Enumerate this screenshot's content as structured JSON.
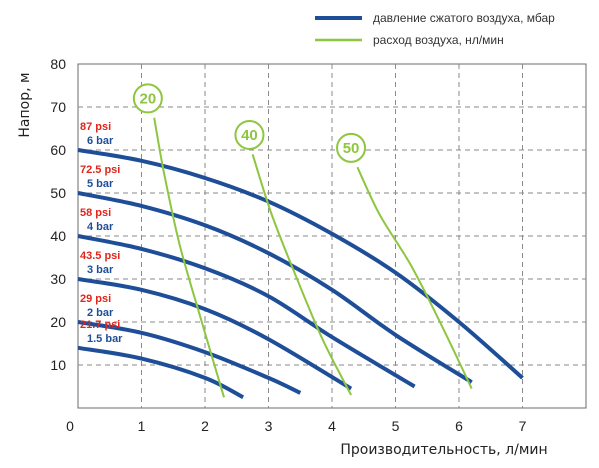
{
  "chart_data": {
    "type": "line",
    "xlabel": "Производительность, л/мин",
    "ylabel": "Напор, м",
    "xlim": [
      0,
      8
    ],
    "ylim": [
      0,
      80
    ],
    "x_ticks": [
      "0",
      "1",
      "2",
      "3",
      "4",
      "5",
      "6",
      "7"
    ],
    "y_ticks": [
      "10",
      "20",
      "30",
      "40",
      "50",
      "60",
      "70",
      "80"
    ],
    "grid": true,
    "legend_position": "top-right",
    "legend": [
      {
        "label": "давление сжатого воздуха, мбар",
        "color": "#1f4e99"
      },
      {
        "label": "расход воздуха, нл/мин",
        "color": "#8dc63f"
      }
    ],
    "colors": {
      "pressure": "#1f4e99",
      "air": "#8dc63f",
      "psi_label": "#e1251b",
      "bar_label": "#1f4e99"
    },
    "pressure_series": [
      {
        "psi": "87 psi",
        "bar": "6 bar",
        "points": [
          [
            0,
            60
          ],
          [
            1,
            57.5
          ],
          [
            2,
            53.5
          ],
          [
            3,
            48
          ],
          [
            4,
            40.5
          ],
          [
            5,
            31.5
          ],
          [
            6,
            20
          ],
          [
            7,
            7
          ]
        ]
      },
      {
        "psi": "72.5 psi",
        "bar": "5 bar",
        "points": [
          [
            0,
            50
          ],
          [
            1,
            47
          ],
          [
            2,
            42.5
          ],
          [
            3,
            36
          ],
          [
            4,
            27.5
          ],
          [
            5,
            17
          ],
          [
            6.2,
            6
          ]
        ]
      },
      {
        "psi": "58 psi",
        "bar": "4 bar",
        "points": [
          [
            0,
            40
          ],
          [
            1,
            37
          ],
          [
            2,
            32.5
          ],
          [
            3,
            26
          ],
          [
            4,
            16.5
          ],
          [
            5.3,
            5
          ]
        ]
      },
      {
        "psi": "43.5 psi",
        "bar": "3 bar",
        "points": [
          [
            0,
            30
          ],
          [
            1,
            27.5
          ],
          [
            2,
            23
          ],
          [
            3,
            16
          ],
          [
            4.3,
            4.5
          ]
        ]
      },
      {
        "psi": "29 psi",
        "bar": "2 bar",
        "points": [
          [
            0,
            20
          ],
          [
            1,
            17.5
          ],
          [
            2,
            13
          ],
          [
            3,
            7
          ],
          [
            3.5,
            3.5
          ]
        ]
      },
      {
        "psi": "21.7 psi",
        "bar": "1.5 bar",
        "points": [
          [
            0,
            14
          ],
          [
            1,
            11.5
          ],
          [
            2,
            7
          ],
          [
            2.6,
            2.5
          ]
        ]
      }
    ],
    "air_series": [
      {
        "label": "20",
        "marker": [
          1.1,
          72
        ],
        "points": [
          [
            1.2,
            67.5
          ],
          [
            1.35,
            55
          ],
          [
            1.6,
            38
          ],
          [
            1.95,
            20
          ],
          [
            2.3,
            2.5
          ]
        ]
      },
      {
        "label": "40",
        "marker": [
          2.7,
          63.5
        ],
        "points": [
          [
            2.75,
            59
          ],
          [
            3.05,
            45
          ],
          [
            3.45,
            30
          ],
          [
            3.85,
            16
          ],
          [
            4.3,
            3
          ]
        ]
      },
      {
        "label": "50",
        "marker": [
          4.3,
          60.5
        ],
        "points": [
          [
            4.4,
            56
          ],
          [
            4.75,
            45
          ],
          [
            5.25,
            33
          ],
          [
            5.75,
            18.5
          ],
          [
            6.2,
            4.5
          ]
        ]
      }
    ]
  }
}
